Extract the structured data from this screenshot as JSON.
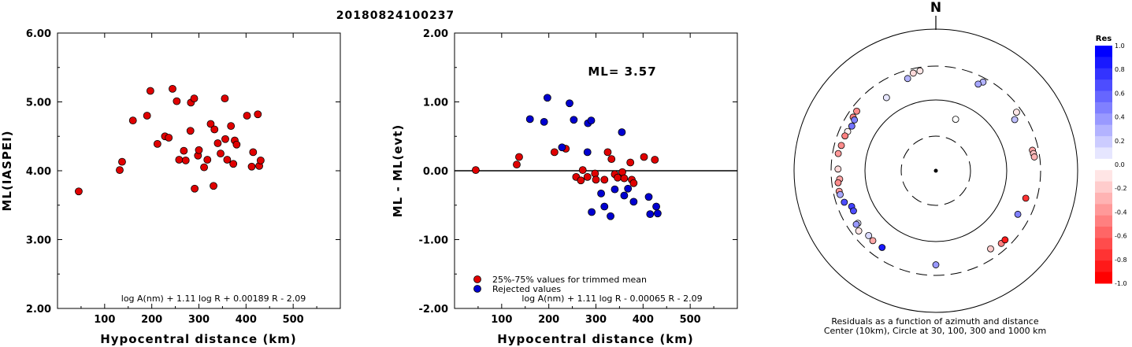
{
  "page_title": "20180824100237",
  "chart_data": [
    {
      "type": "scatter",
      "id": "ml-vs-distance",
      "xlabel": "Hypocentral distance (km)",
      "ylabel": "ML(IASPEI)",
      "xlim": [
        0,
        600
      ],
      "ylim": [
        2.0,
        6.0
      ],
      "xticks": [
        "100",
        "200",
        "300",
        "400",
        "500"
      ],
      "yticks": [
        "2.00",
        "3.00",
        "4.00",
        "5.00",
        "6.00"
      ],
      "formula": "log A(nm) + 1.11 log R + 0.00189 R - 2.09",
      "marker_color": "#e00000",
      "points": [
        [
          45,
          3.7
        ],
        [
          132,
          4.01
        ],
        [
          137,
          4.13
        ],
        [
          160,
          4.73
        ],
        [
          190,
          4.8
        ],
        [
          197,
          5.16
        ],
        [
          212,
          4.39
        ],
        [
          228,
          4.5
        ],
        [
          236,
          4.48
        ],
        [
          244,
          5.19
        ],
        [
          253,
          5.01
        ],
        [
          258,
          4.16
        ],
        [
          268,
          4.29
        ],
        [
          272,
          4.15
        ],
        [
          282,
          4.58
        ],
        [
          283,
          4.99
        ],
        [
          290,
          5.05
        ],
        [
          291,
          3.74
        ],
        [
          298,
          4.22
        ],
        [
          300,
          4.3
        ],
        [
          311,
          4.05
        ],
        [
          318,
          4.16
        ],
        [
          325,
          4.68
        ],
        [
          331,
          3.78
        ],
        [
          333,
          4.6
        ],
        [
          340,
          4.4
        ],
        [
          346,
          4.25
        ],
        [
          355,
          5.05
        ],
        [
          356,
          4.46
        ],
        [
          360,
          4.16
        ],
        [
          368,
          4.65
        ],
        [
          373,
          4.1
        ],
        [
          376,
          4.44
        ],
        [
          380,
          4.38
        ],
        [
          402,
          4.8
        ],
        [
          412,
          4.06
        ],
        [
          415,
          4.27
        ],
        [
          425,
          4.82
        ],
        [
          428,
          4.07
        ],
        [
          431,
          4.15
        ]
      ]
    },
    {
      "type": "scatter",
      "id": "residual-vs-distance",
      "xlabel": "Hypocentral distance (km)",
      "ylabel": "ML - ML(evt)",
      "xlim": [
        0,
        600
      ],
      "ylim": [
        -2.0,
        2.0
      ],
      "xticks": [
        "100",
        "200",
        "300",
        "400",
        "500"
      ],
      "yticks": [
        "-2.00",
        "-1.00",
        "0.00",
        "1.00",
        "2.00"
      ],
      "annotation": "ML= 3.57",
      "formula": "log A(nm) + 1.11 log R - 0.00065 R - 2.09",
      "legend": [
        "25%-75% values for trimmed mean",
        "Rejected values"
      ],
      "legend_position": "bottom-left",
      "series": [
        {
          "name": "25%-75% values for trimmed mean",
          "color": "#e00000",
          "points": [
            [
              45,
              0.01
            ],
            [
              132,
              0.09
            ],
            [
              137,
              0.2
            ],
            [
              212,
              0.27
            ],
            [
              236,
              0.32
            ],
            [
              258,
              -0.09
            ],
            [
              268,
              -0.14
            ],
            [
              272,
              0.01
            ],
            [
              282,
              -0.09
            ],
            [
              298,
              -0.04
            ],
            [
              300,
              -0.13
            ],
            [
              318,
              -0.13
            ],
            [
              325,
              0.27
            ],
            [
              333,
              0.17
            ],
            [
              340,
              -0.05
            ],
            [
              346,
              -0.1
            ],
            [
              356,
              -0.02
            ],
            [
              360,
              -0.11
            ],
            [
              373,
              0.12
            ],
            [
              376,
              -0.13
            ],
            [
              380,
              -0.18
            ],
            [
              402,
              0.2
            ],
            [
              425,
              0.16
            ]
          ]
        },
        {
          "name": "Rejected values",
          "color": "#0000d0",
          "points": [
            [
              160,
              0.75
            ],
            [
              190,
              0.71
            ],
            [
              197,
              1.06
            ],
            [
              228,
              0.34
            ],
            [
              244,
              0.98
            ],
            [
              253,
              0.74
            ],
            [
              282,
              0.27
            ],
            [
              283,
              0.69
            ],
            [
              290,
              0.73
            ],
            [
              291,
              -0.6
            ],
            [
              311,
              -0.33
            ],
            [
              318,
              -0.52
            ],
            [
              331,
              -0.66
            ],
            [
              340,
              -0.27
            ],
            [
              355,
              0.56
            ],
            [
              360,
              -0.36
            ],
            [
              368,
              -0.26
            ],
            [
              380,
              -0.45
            ],
            [
              412,
              -0.38
            ],
            [
              415,
              -0.63
            ],
            [
              428,
              -0.52
            ],
            [
              431,
              -0.62
            ]
          ]
        }
      ]
    },
    {
      "type": "polar-scatter",
      "id": "azimuth-residuals",
      "north_label": "N",
      "caption": [
        "Residuals as a function of azimuth and distance",
        "Center (10km), Circle at 30, 100, 300 and 1000 km"
      ],
      "rings_km": [
        30,
        100,
        300,
        1000
      ],
      "colorbar": {
        "title": "Res",
        "ticks": [
          "1.0",
          "0.8",
          "0.6",
          "0.4",
          "0.2",
          "0.0",
          "-0.2",
          "-0.4",
          "-0.6",
          "-0.8",
          "-1.0"
        ]
      },
      "stations": [
        {
          "az": 343,
          "dist": 230,
          "res": 0.3
        },
        {
          "az": 347,
          "dist": 260,
          "res": -0.15
        },
        {
          "az": 351,
          "dist": 268,
          "res": -0.1
        },
        {
          "az": 28,
          "dist": 262,
          "res": 0.3
        },
        {
          "az": 26,
          "dist": 230,
          "res": 0.35
        },
        {
          "az": 54,
          "dist": 255,
          "res": -0.1
        },
        {
          "az": 57,
          "dist": 212,
          "res": 0.25
        },
        {
          "az": 78,
          "dist": 247,
          "res": -0.35
        },
        {
          "az": 80,
          "dist": 250,
          "res": -0.25
        },
        {
          "az": 82,
          "dist": 253,
          "res": -0.3
        },
        {
          "az": 21,
          "dist": 60,
          "res": 0.0
        },
        {
          "az": 326,
          "dist": 176,
          "res": 0.1
        },
        {
          "az": 303,
          "dist": 246,
          "res": -0.5
        },
        {
          "az": 307,
          "dist": 250,
          "res": -0.45
        },
        {
          "az": 302,
          "dist": 226,
          "res": 0.5
        },
        {
          "az": 298,
          "dist": 220,
          "res": 0.55
        },
        {
          "az": 294,
          "dist": 230,
          "res": -0.05
        },
        {
          "az": 291,
          "dist": 236,
          "res": -0.5
        },
        {
          "az": 285,
          "dist": 240,
          "res": -0.45
        },
        {
          "az": 280,
          "dist": 250,
          "res": -0.4
        },
        {
          "az": 271,
          "dist": 240,
          "res": -0.15
        },
        {
          "az": 265,
          "dist": 230,
          "res": -0.35
        },
        {
          "az": 263,
          "dist": 245,
          "res": -0.45
        },
        {
          "az": 258,
          "dist": 248,
          "res": -0.4
        },
        {
          "az": 256,
          "dist": 246,
          "res": 0.35
        },
        {
          "az": 251,
          "dist": 232,
          "res": 0.7
        },
        {
          "az": 247,
          "dist": 195,
          "res": 0.75
        },
        {
          "az": 244,
          "dist": 196,
          "res": 0.7
        },
        {
          "az": 236,
          "dist": 212,
          "res": 0.1
        },
        {
          "az": 236,
          "dist": 226,
          "res": 0.4
        },
        {
          "az": 232,
          "dist": 240,
          "res": -0.1
        },
        {
          "az": 226,
          "dist": 208,
          "res": 0.15
        },
        {
          "az": 222,
          "dist": 213,
          "res": -0.35
        },
        {
          "az": 215,
          "dist": 210,
          "res": 0.9
        },
        {
          "az": 180,
          "dist": 213,
          "res": 0.4
        },
        {
          "az": 145,
          "dist": 222,
          "res": -0.2
        },
        {
          "az": 118,
          "dist": 204,
          "res": 0.5
        },
        {
          "az": 107,
          "dist": 212,
          "res": -0.8
        },
        {
          "az": 138,
          "dist": 240,
          "res": -0.5
        },
        {
          "az": 135,
          "dist": 240,
          "res": -0.9
        }
      ]
    }
  ]
}
